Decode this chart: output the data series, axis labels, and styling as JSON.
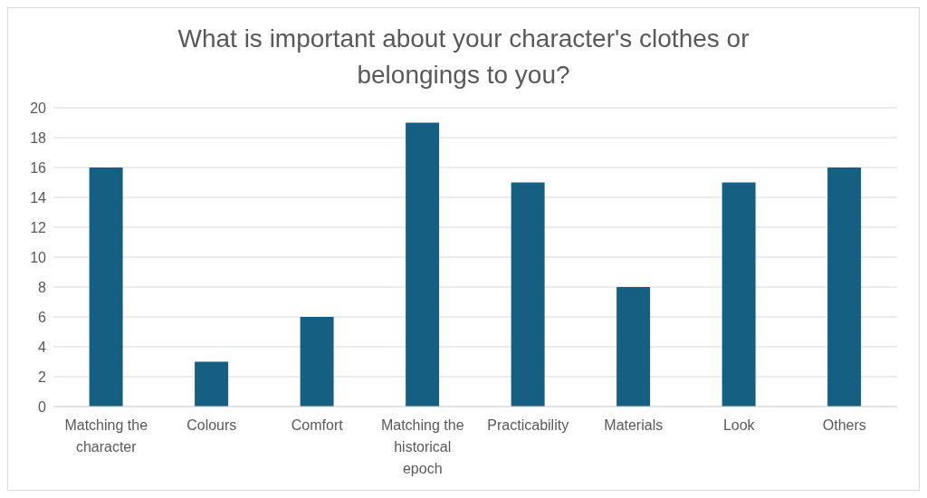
{
  "chart_data": {
    "type": "bar",
    "title": "What is important about your character's clothes or belongings to you?",
    "categories": [
      "Matching the character",
      "Colours",
      "Comfort",
      "Matching the historical epoch",
      "Practicability",
      "Materials",
      "Look",
      "Others"
    ],
    "values": [
      16,
      3,
      6,
      19,
      15,
      8,
      15,
      16
    ],
    "color": "#156082",
    "ylim": [
      0,
      20
    ],
    "yticks": [
      0,
      2,
      4,
      6,
      8,
      10,
      12,
      14,
      16,
      18,
      20
    ],
    "grid": "y",
    "legend": false
  }
}
